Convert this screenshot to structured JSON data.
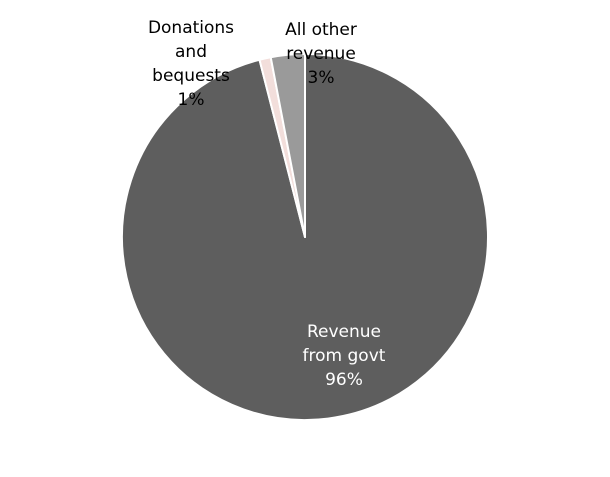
{
  "chart_data": {
    "type": "pie",
    "title": "",
    "slices": [
      {
        "label_lines": [
          "Revenue",
          "from govt",
          "96%"
        ],
        "value": 96,
        "color": "#5e5e5e",
        "label_color": "#ffffff"
      },
      {
        "label_lines": [
          "Donations",
          "and",
          "bequests",
          "1%"
        ],
        "value": 1,
        "color": "#f2dedb",
        "label_color": "#000000"
      },
      {
        "label_lines": [
          "All other",
          "revenue",
          "3%"
        ],
        "value": 3,
        "color": "#9a9a9a",
        "label_color": "#000000"
      }
    ]
  }
}
